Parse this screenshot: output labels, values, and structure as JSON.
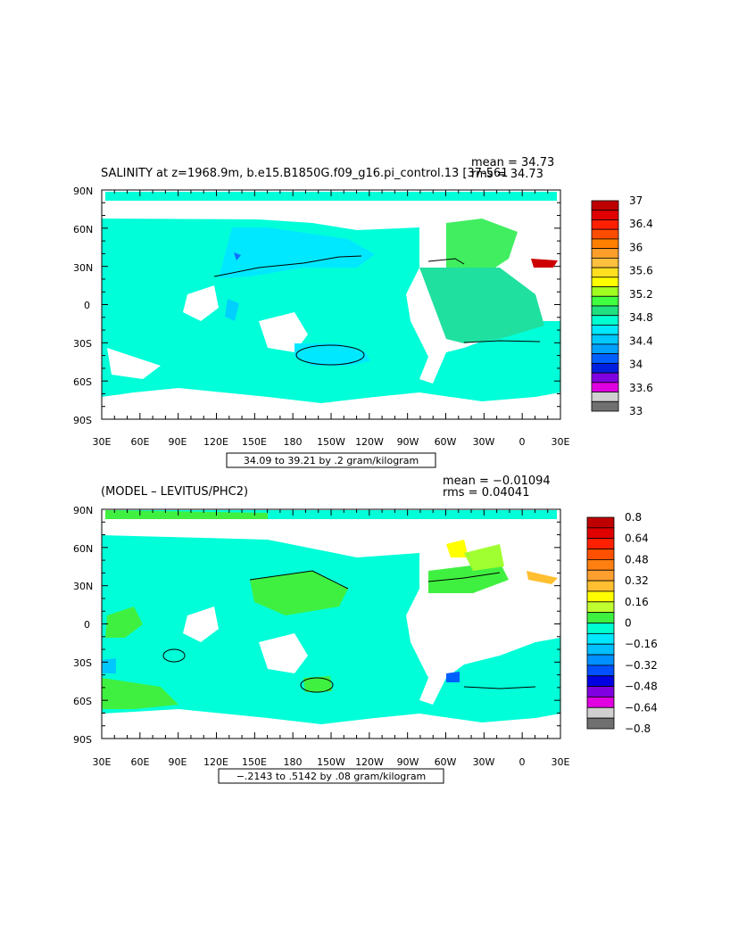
{
  "panels": [
    {
      "title": "SALINITY at z=1968.9m, b.e15.B1850G.f09_g16.pi_control.13 [37-561",
      "stats": {
        "mean": "mean = 34.73",
        "rms": "rms = 34.73"
      },
      "range_label": "34.09 to 39.21 by .2 gram/kilogram",
      "lat_labels": [
        "90N",
        "60N",
        "30N",
        "0",
        "30S",
        "60S",
        "90S"
      ],
      "lon_labels": [
        "30E",
        "60E",
        "90E",
        "120E",
        "150E",
        "180",
        "150W",
        "120W",
        "90W",
        "60W",
        "30W",
        "0",
        "30E"
      ],
      "colorbar": {
        "colors": [
          "#bf0000",
          "#e00000",
          "#ff2000",
          "#ff4d00",
          "#ff7f00",
          "#ff9f2a",
          "#ffbf3f",
          "#ffdf20",
          "#ffff00",
          "#a0ff20",
          "#40ff40",
          "#20e080",
          "#00ffd0",
          "#00e8ff",
          "#00c8ff",
          "#00a0ff",
          "#0060ff",
          "#0020e0",
          "#8000e0",
          "#e000e0",
          "#d0d0d0",
          "#707070"
        ],
        "labels": [
          "37",
          "36.4",
          "36",
          "35.6",
          "35.2",
          "34.8",
          "34.4",
          "34",
          "33.6",
          "33"
        ]
      }
    },
    {
      "title": "(MODEL – LEVITUS/PHC2)",
      "stats": {
        "mean": "mean = −0.01094",
        "rms": "rms = 0.04041"
      },
      "range_label": "−.2143 to .5142 by .08 gram/kilogram",
      "lat_labels": [
        "90N",
        "60N",
        "30N",
        "0",
        "30S",
        "60S",
        "90S"
      ],
      "lon_labels": [
        "30E",
        "60E",
        "90E",
        "120E",
        "150E",
        "180",
        "150W",
        "120W",
        "90W",
        "60W",
        "30W",
        "0",
        "30E"
      ],
      "colorbar": {
        "colors": [
          "#bf0000",
          "#e00000",
          "#ff2000",
          "#ff5000",
          "#ff7f10",
          "#ff9f30",
          "#ffbf30",
          "#ffff00",
          "#c0ff30",
          "#40f040",
          "#00ffd0",
          "#00e8ff",
          "#00c0ff",
          "#0090ff",
          "#0050ff",
          "#0000e0",
          "#8000e0",
          "#e000e0",
          "#d0d0d0",
          "#707070"
        ],
        "labels": [
          "0.8",
          "0.64",
          "0.48",
          "0.32",
          "0.16",
          "0",
          "−0.16",
          "−0.32",
          "−0.48",
          "−0.64",
          "−0.8"
        ]
      }
    }
  ],
  "map_colors": {
    "ocean_base": "#00ffff",
    "ocean_deep_mode": "#00e0ff",
    "diff_base": "#00ffd2",
    "diff_positive": "#40f040",
    "land": "#ffffff"
  }
}
